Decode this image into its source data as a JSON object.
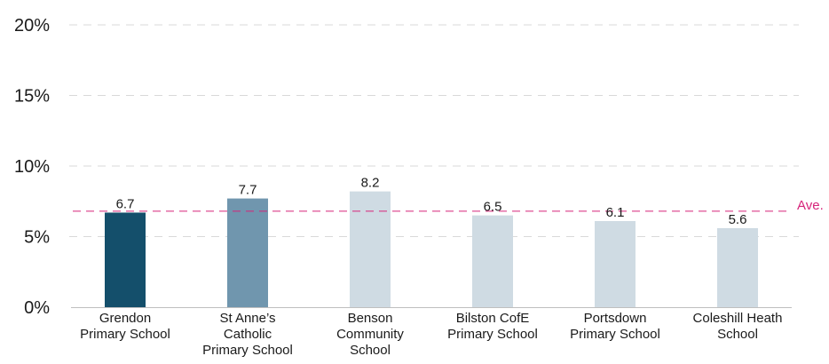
{
  "chart_data": {
    "type": "bar",
    "categories": [
      [
        "Grendon",
        "Primary School"
      ],
      [
        "St Anne’s",
        "Catholic",
        "Primary School"
      ],
      [
        "Benson",
        "Community",
        "School"
      ],
      [
        "Bilston CofE",
        "Primary School"
      ],
      [
        "Portsdown",
        "Primary School"
      ],
      [
        "Coleshill Heath",
        "School"
      ]
    ],
    "values": [
      6.7,
      7.7,
      8.2,
      6.5,
      6.1,
      5.6
    ],
    "data_labels": [
      "6.7",
      "7.7",
      "8.2",
      "6.5",
      "6.1",
      "5.6"
    ],
    "bar_colors": [
      "#144f6b",
      "#7096ae",
      "#cfdbe3",
      "#cfdbe3",
      "#cfdbe3",
      "#cfdbe3"
    ],
    "ylim": [
      0,
      20
    ],
    "yticks": [
      0,
      5,
      10,
      15,
      20
    ],
    "ytick_labels": [
      "0%",
      "5%",
      "10%",
      "15%",
      "20%"
    ],
    "grid": true,
    "average": {
      "value": 6.8,
      "label": "Ave.",
      "color": "#d6247a"
    },
    "title": "",
    "xlabel": "",
    "ylabel": ""
  }
}
